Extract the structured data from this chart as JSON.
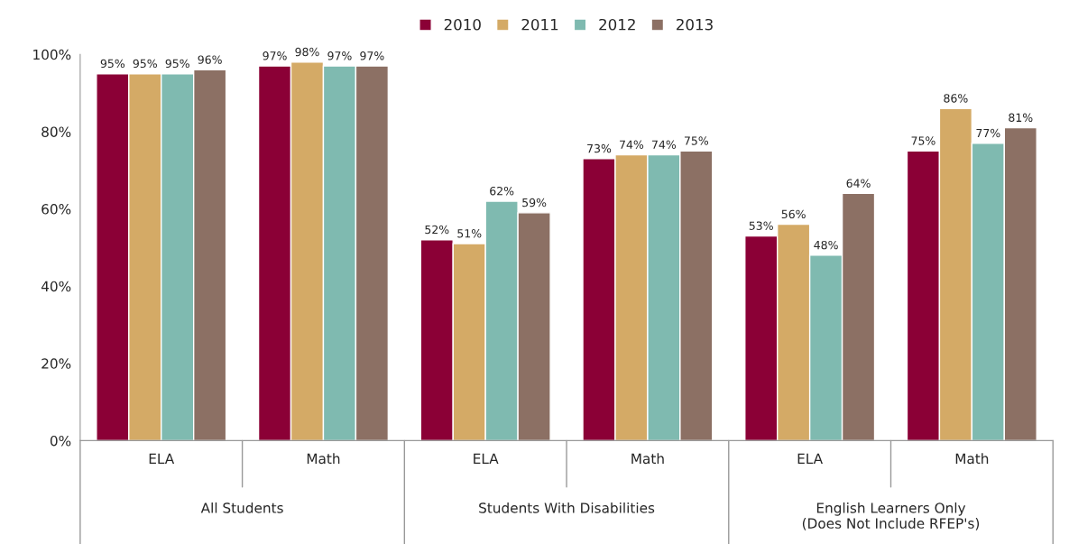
{
  "chart_data": {
    "type": "bar",
    "categories": [
      "ELA",
      "Math",
      "ELA",
      "Math",
      "ELA",
      "Math"
    ],
    "series": [
      {
        "name": "2010",
        "color": "#8b0036",
        "values": [
          95,
          97,
          52,
          73,
          53,
          75
        ],
        "value_labels": [
          "95%",
          "97%",
          "52%",
          "73%",
          "53%",
          "75%"
        ]
      },
      {
        "name": "2011",
        "color": "#d4aa66",
        "values": [
          95,
          98,
          51,
          74,
          56,
          86
        ],
        "value_labels": [
          "95%",
          "98%",
          "51%",
          "74%",
          "56%",
          "86%"
        ]
      },
      {
        "name": "2012",
        "color": "#7fbab0",
        "values": [
          95,
          97,
          62,
          74,
          48,
          77
        ],
        "value_labels": [
          "95%",
          "97%",
          "62%",
          "74%",
          "48%",
          "77%"
        ]
      },
      {
        "name": "2013",
        "color": "#8c7064",
        "values": [
          96,
          97,
          59,
          75,
          64,
          81
        ],
        "value_labels": [
          "96%",
          "97%",
          "59%",
          "75%",
          "64%",
          "81%"
        ]
      }
    ],
    "annotations": [
      "All Students",
      "Students With Disabilities",
      "English Learners Only\n(Does Not Include RFEP's)"
    ],
    "ylim": [
      0,
      100
    ],
    "yticks": [
      {
        "value": 0,
        "label": "0%"
      },
      {
        "value": 20,
        "label": "20%"
      },
      {
        "value": 40,
        "label": "40%"
      },
      {
        "value": 60,
        "label": "60%"
      },
      {
        "value": 80,
        "label": "80%"
      },
      {
        "value": 100,
        "label": "100%"
      }
    ],
    "legend": "top",
    "grid": false
  }
}
